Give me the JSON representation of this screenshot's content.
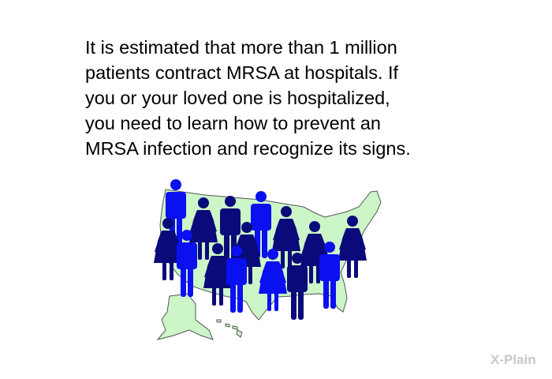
{
  "slide": {
    "lines": [
      "It is estimated that more than 1 million",
      "patients contract MRSA at hospitals. If",
      "you or your loved one is hospitalized,",
      "you need to learn how to prevent an",
      "MRSA infection and recognize its signs."
    ]
  },
  "illustration": {
    "icon": "us-map-with-people-icon",
    "colors": {
      "map": "#ccf5c8",
      "border": "#555555",
      "dark": "#0a0a7a",
      "blue": "#0a10f0"
    }
  },
  "logo": {
    "text": "X-Plain",
    "color": "#c8c8c8"
  }
}
